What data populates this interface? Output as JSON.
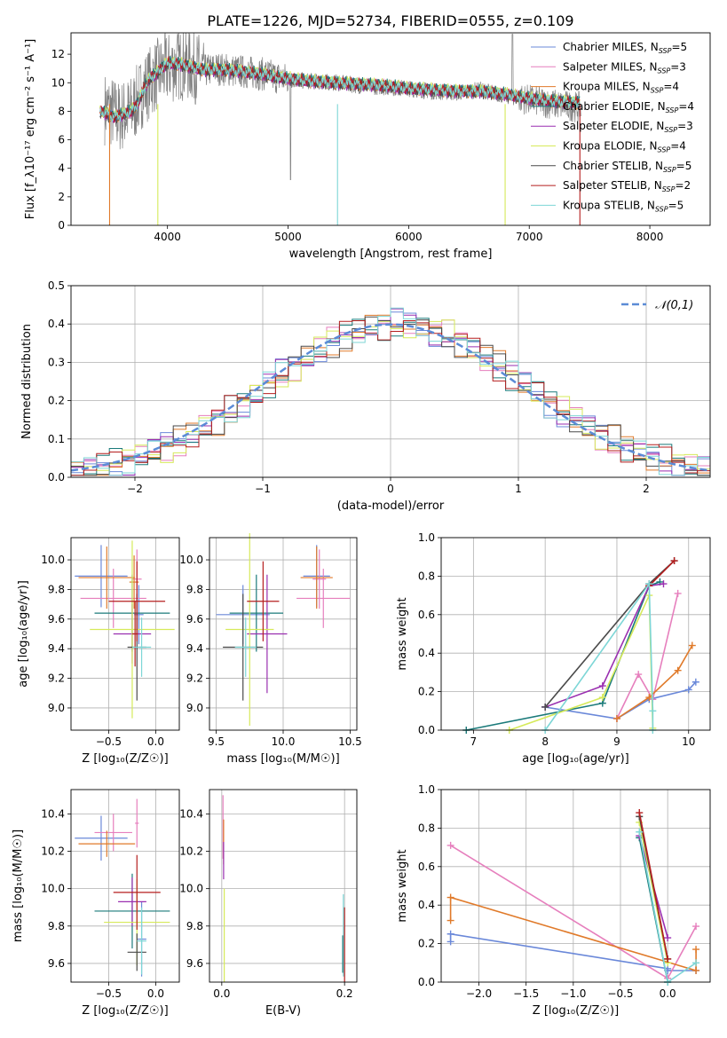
{
  "figure_title": "PLATE=1226, MJD=52734, FIBERID=0555, z=0.109",
  "colors": [
    "#6a88d9",
    "#e67fbd",
    "#e07a2a",
    "#1a7a7a",
    "#9a2fb0",
    "#d6ea5a",
    "#4a4a4a",
    "#b51e1e",
    "#7dd6d6"
  ],
  "chart_data": [
    {
      "id": "spectrum",
      "type": "line",
      "title": "PLATE=1226, MJD=52734, FIBERID=0555, z=0.109",
      "xlabel": "wavelength [Angstrom, rest frame]",
      "ylabel": "Flux [f_λ10⁻¹⁷ erg cm⁻² s⁻¹ A⁻¹]",
      "xlim": [
        3200,
        8500
      ],
      "ylim": [
        0,
        13.5
      ],
      "xticks": [
        "4000",
        "5000",
        "6000",
        "7000",
        "8000"
      ],
      "yticks": [
        "0",
        "2",
        "4",
        "6",
        "8",
        "10",
        "12"
      ],
      "legend_position": "top-right",
      "data_series": {
        "name": "data",
        "x": [
          3500,
          3600,
          3700,
          3800,
          3900,
          4000,
          4100,
          4200,
          4300,
          4400,
          4500,
          4600,
          4700,
          4800,
          4900,
          5000,
          5200,
          5400,
          5600,
          5800,
          6000,
          6200,
          6400,
          6600,
          6800,
          7000,
          7200,
          7400
        ],
        "y": [
          8.2,
          7.6,
          8.0,
          9.5,
          10.5,
          11.0,
          11.3,
          11.2,
          10.8,
          11.0,
          10.9,
          10.8,
          10.7,
          10.6,
          10.4,
          10.2,
          10.1,
          10.0,
          9.8,
          9.7,
          9.6,
          9.4,
          9.3,
          9.5,
          9.1,
          8.8,
          8.5,
          8.3
        ]
      },
      "model_x": [
        3450,
        3500,
        3550,
        3600,
        3700,
        3750,
        3800,
        3850,
        3900,
        3950,
        4000,
        4100,
        4200,
        4300,
        4400,
        4500,
        4600,
        4700,
        4800,
        4900,
        5000,
        5200,
        5400,
        5600,
        5800,
        6000,
        6200,
        6400,
        6600,
        6800,
        7000,
        7200,
        7400
      ],
      "model_y": [
        8.0,
        7.8,
        7.6,
        7.7,
        8.0,
        8.5,
        9.5,
        10.3,
        10.6,
        11.0,
        11.4,
        11.3,
        11.1,
        10.9,
        10.9,
        10.9,
        10.8,
        10.7,
        10.6,
        10.4,
        10.3,
        10.1,
        10.0,
        9.9,
        9.8,
        9.6,
        9.5,
        9.4,
        9.4,
        9.2,
        8.9,
        8.7,
        8.6
      ],
      "series": [
        {
          "name": "Chabrier MILES, N_SSP=5",
          "label_main": "Chabrier MILES, N",
          "label_sub": "SSP",
          "label_tail": "=5",
          "offset": 0.0
        },
        {
          "name": "Salpeter MILES, N_SSP=3",
          "label_main": "Salpeter MILES, N",
          "label_sub": "SSP",
          "label_tail": "=3",
          "offset": 0.05
        },
        {
          "name": "Kroupa MILES, N_SSP=4",
          "label_main": "Kroupa MILES, N",
          "label_sub": "SSP",
          "label_tail": "=4",
          "offset": -0.05
        },
        {
          "name": "Chabrier ELODIE, N_SSP=4",
          "label_main": "Chabrier ELODIE, N",
          "label_sub": "SSP",
          "label_tail": "=4",
          "offset": 0.08
        },
        {
          "name": "Salpeter ELODIE, N_SSP=3",
          "label_main": "Salpeter ELODIE, N",
          "label_sub": "SSP",
          "label_tail": "=3",
          "offset": -0.08
        },
        {
          "name": "Kroupa ELODIE, N_SSP=4",
          "label_main": "Kroupa ELODIE, N",
          "label_sub": "SSP",
          "label_tail": "=4",
          "offset": 0.1
        },
        {
          "name": "Chabrier STELIB, N_SSP=5",
          "label_main": "Chabrier STELIB, N",
          "label_sub": "SSP",
          "label_tail": "=5",
          "offset": -0.1
        },
        {
          "name": "Salpeter STELIB, N_SSP=2",
          "label_main": "Salpeter STELIB, N",
          "label_sub": "SSP",
          "label_tail": "=2",
          "offset": 0.03
        },
        {
          "name": "Kroupa STELIB, N_SSP=5",
          "label_main": "Kroupa STELIB, N",
          "label_sub": "SSP",
          "label_tail": "=5",
          "offset": 0.0
        }
      ],
      "drop_lines": [
        {
          "x": 3520,
          "series": 2
        },
        {
          "x": 3920,
          "series": 5
        },
        {
          "x": 5410,
          "series": 8
        },
        {
          "x": 6800,
          "series": 5
        },
        {
          "x": 7420,
          "series": 7
        }
      ]
    },
    {
      "id": "residuals",
      "type": "histogram",
      "xlabel": "(data-model)/error",
      "ylabel": "Normed distribution",
      "xlim": [
        -2.5,
        2.5
      ],
      "ylim": [
        0,
        0.5
      ],
      "xticks": [
        "−2",
        "−1",
        "0",
        "1",
        "2"
      ],
      "yticks": [
        "0.0",
        "0.1",
        "0.2",
        "0.3",
        "0.4",
        "0.5"
      ],
      "legend_position": "top-right",
      "reference_curve": {
        "name": "𝒩(0,1)",
        "type": "gaussian",
        "mean": 0,
        "sigma": 1
      },
      "bin_width": 0.1
    },
    {
      "id": "age-vs-Z",
      "type": "scatter",
      "xlabel": "Z [log₁₀(Z/Z☉)]",
      "ylabel": "age  [log₁₀(age/yr)]",
      "xlim": [
        -0.9,
        0.25
      ],
      "ylim": [
        8.85,
        10.15
      ],
      "xticks": [
        "−0.5",
        "0.0"
      ],
      "yticks": [
        "9.0",
        "9.2",
        "9.4",
        "9.6",
        "9.8",
        "10.0"
      ],
      "points": [
        {
          "series": 0,
          "x": -0.58,
          "y": 9.89,
          "xerr": 0.28,
          "yerr": 0.21
        },
        {
          "series": 0,
          "x": -0.18,
          "y": 9.63,
          "xerr": 0.05,
          "yerr": 0.2
        },
        {
          "series": 1,
          "x": -0.45,
          "y": 9.74,
          "xerr": 0.35,
          "yerr": 0.2
        },
        {
          "series": 1,
          "x": -0.2,
          "y": 9.87,
          "xerr": 0.05,
          "yerr": 0.2
        },
        {
          "series": 2,
          "x": -0.52,
          "y": 9.88,
          "xerr": 0.3,
          "yerr": 0.21
        },
        {
          "series": 2,
          "x": -0.23,
          "y": 9.85,
          "xerr": 0.05,
          "yerr": 0.18
        },
        {
          "series": 3,
          "x": -0.25,
          "y": 9.64,
          "xerr": 0.4,
          "yerr": 0.26
        },
        {
          "series": 4,
          "x": -0.25,
          "y": 9.5,
          "xerr": 0.2,
          "yerr": 0.2
        },
        {
          "series": 5,
          "x": -0.25,
          "y": 9.53,
          "xerr": 0.45,
          "yerr": 0.6
        },
        {
          "series": 6,
          "x": -0.2,
          "y": 9.41,
          "xerr": 0.1,
          "yerr": 0.36
        },
        {
          "series": 7,
          "x": -0.2,
          "y": 9.72,
          "xerr": 0.3,
          "yerr": 0.27
        },
        {
          "series": 7,
          "x": -0.22,
          "y": 9.5,
          "xerr": 0.03,
          "yerr": 0.22
        },
        {
          "series": 8,
          "x": -0.15,
          "y": 9.41,
          "xerr": 0.1,
          "yerr": 0.2
        }
      ]
    },
    {
      "id": "age-vs-mass",
      "type": "scatter",
      "xlabel": "mass [log₁₀(M/M☉)]",
      "ylabel": "",
      "xlim": [
        9.45,
        10.55
      ],
      "ylim": [
        8.85,
        10.15
      ],
      "xticks": [
        "9.5",
        "10.0",
        "10.5"
      ],
      "yticks": [
        "9.0",
        "9.2",
        "9.4",
        "9.6",
        "9.8",
        "10.0"
      ],
      "points": [
        {
          "series": 0,
          "x": 9.7,
          "y": 9.63,
          "xerr": 0.2,
          "yerr": 0.2
        },
        {
          "series": 0,
          "x": 10.25,
          "y": 9.89,
          "xerr": 0.1,
          "yerr": 0.21
        },
        {
          "series": 1,
          "x": 10.3,
          "y": 9.74,
          "xerr": 0.2,
          "yerr": 0.2
        },
        {
          "series": 1,
          "x": 10.27,
          "y": 9.87,
          "xerr": 0.05,
          "yerr": 0.2
        },
        {
          "series": 2,
          "x": 10.25,
          "y": 9.88,
          "xerr": 0.12,
          "yerr": 0.21
        },
        {
          "series": 3,
          "x": 9.8,
          "y": 9.64,
          "xerr": 0.2,
          "yerr": 0.26
        },
        {
          "series": 4,
          "x": 9.88,
          "y": 9.5,
          "xerr": 0.15,
          "yerr": 0.4
        },
        {
          "series": 5,
          "x": 9.75,
          "y": 9.53,
          "xerr": 0.18,
          "yerr": 0.65
        },
        {
          "series": 6,
          "x": 9.7,
          "y": 9.41,
          "xerr": 0.15,
          "yerr": 0.36
        },
        {
          "series": 7,
          "x": 9.85,
          "y": 9.72,
          "xerr": 0.12,
          "yerr": 0.27
        },
        {
          "series": 8,
          "x": 9.72,
          "y": 9.41,
          "xerr": 0.08,
          "yerr": 0.2
        }
      ]
    },
    {
      "id": "mass-weight-vs-age",
      "type": "line",
      "xlabel": "age  [log₁₀(age/yr)]",
      "ylabel": "mass weight",
      "xlim": [
        6.55,
        10.3
      ],
      "ylim": [
        0,
        1.0
      ],
      "xticks": [
        "7",
        "8",
        "9",
        "10"
      ],
      "yticks": [
        "0.0",
        "0.2",
        "0.4",
        "0.6",
        "0.8",
        "1.0"
      ],
      "series": [
        {
          "series": 0,
          "x": [
            8.0,
            9.0,
            9.45,
            10.0,
            10.1
          ],
          "y": [
            0.12,
            0.06,
            0.16,
            0.21,
            0.25
          ]
        },
        {
          "series": 1,
          "x": [
            9.0,
            9.3,
            9.5,
            9.85
          ],
          "y": [
            0.06,
            0.29,
            0.16,
            0.71
          ]
        },
        {
          "series": 2,
          "x": [
            9.0,
            9.45,
            9.85,
            10.05
          ],
          "y": [
            0.06,
            0.17,
            0.31,
            0.44
          ]
        },
        {
          "series": 3,
          "x": [
            6.9,
            8.8,
            9.45,
            9.6
          ],
          "y": [
            0.0,
            0.14,
            0.75,
            0.77
          ]
        },
        {
          "series": 4,
          "x": [
            8.0,
            8.8,
            9.45,
            9.65
          ],
          "y": [
            0.12,
            0.23,
            0.75,
            0.76
          ]
        },
        {
          "series": 5,
          "x": [
            7.5,
            8.8,
            9.45,
            9.5
          ],
          "y": [
            0.0,
            0.17,
            0.7,
            0.01
          ]
        },
        {
          "series": 6,
          "x": [
            8.0,
            9.45,
            9.8
          ],
          "y": [
            0.12,
            0.76,
            0.88
          ]
        },
        {
          "series": 7,
          "x": [
            9.45,
            9.8
          ],
          "y": [
            0.75,
            0.88
          ]
        },
        {
          "series": 8,
          "x": [
            8.0,
            9.45,
            9.5,
            9.5
          ],
          "y": [
            0.0,
            0.76,
            0.1,
            0.0
          ]
        }
      ]
    },
    {
      "id": "mass-vs-Z",
      "type": "scatter",
      "xlabel": "Z [log₁₀(Z/Z☉)]",
      "ylabel": "mass [log₁₀(M/M☉)]",
      "xlim": [
        -0.9,
        0.25
      ],
      "ylim": [
        9.5,
        10.53
      ],
      "xticks": [
        "−0.5",
        "0.0"
      ],
      "yticks": [
        "9.6",
        "9.8",
        "10.0",
        "10.2",
        "10.4"
      ],
      "points": [
        {
          "series": 0,
          "x": -0.58,
          "y": 10.27,
          "xerr": 0.28,
          "yerr": 0.12
        },
        {
          "series": 0,
          "x": -0.15,
          "y": 9.73,
          "xerr": 0.05,
          "yerr": 0.2
        },
        {
          "series": 1,
          "x": -0.45,
          "y": 10.3,
          "xerr": 0.2,
          "yerr": 0.1
        },
        {
          "series": 1,
          "x": -0.2,
          "y": 10.35,
          "xerr": 0.02,
          "yerr": 0.13
        },
        {
          "series": 2,
          "x": -0.52,
          "y": 10.24,
          "xerr": 0.3,
          "yerr": 0.07
        },
        {
          "series": 3,
          "x": -0.25,
          "y": 9.88,
          "xerr": 0.4,
          "yerr": 0.2
        },
        {
          "series": 4,
          "x": -0.25,
          "y": 9.93,
          "xerr": 0.15,
          "yerr": 0.13
        },
        {
          "series": 5,
          "x": -0.2,
          "y": 9.82,
          "xerr": 0.35,
          "yerr": 0.23
        },
        {
          "series": 6,
          "x": -0.2,
          "y": 9.66,
          "xerr": 0.1,
          "yerr": 0.1
        },
        {
          "series": 7,
          "x": -0.2,
          "y": 9.98,
          "xerr": 0.25,
          "yerr": 0.2
        },
        {
          "series": 8,
          "x": -0.15,
          "y": 9.72,
          "xerr": 0.05,
          "yerr": 0.18
        }
      ]
    },
    {
      "id": "mass-vs-EBV",
      "type": "scatter",
      "xlabel": "E(B-V)",
      "ylabel": "",
      "xlim": [
        -0.02,
        0.22
      ],
      "ylim": [
        9.5,
        10.53
      ],
      "xticks": [
        "0.0",
        "0.2"
      ],
      "yticks": [
        "9.6",
        "9.8",
        "10.0",
        "10.2",
        "10.4"
      ],
      "points": [
        {
          "series": 1,
          "x": 0.002,
          "y": 10.33,
          "xerr": 0.0,
          "yerr": 0.17
        },
        {
          "series": 2,
          "x": 0.003,
          "y": 10.25,
          "xerr": 0.0,
          "yerr": 0.12
        },
        {
          "series": 4,
          "x": 0.003,
          "y": 10.15,
          "xerr": 0.0,
          "yerr": 0.1
        },
        {
          "series": 5,
          "x": 0.004,
          "y": 9.75,
          "xerr": 0.0,
          "yerr": 0.25
        },
        {
          "series": 7,
          "x": 0.2,
          "y": 9.7,
          "xerr": 0.0,
          "yerr": 0.2
        },
        {
          "series": 8,
          "x": 0.198,
          "y": 9.75,
          "xerr": 0.0,
          "yerr": 0.22
        },
        {
          "series": 3,
          "x": 0.197,
          "y": 9.65,
          "xerr": 0.0,
          "yerr": 0.1
        }
      ]
    },
    {
      "id": "mass-weight-vs-Z",
      "type": "line",
      "xlabel": "Z [log₁₀(Z/Z☉)]",
      "ylabel": "mass weight",
      "xlim": [
        -2.4,
        0.45
      ],
      "ylim": [
        0,
        1.0
      ],
      "xticks": [
        "−2.0",
        "−1.5",
        "−1.0",
        "−0.5",
        "0.0"
      ],
      "yticks": [
        "0.0",
        "0.2",
        "0.4",
        "0.6",
        "0.8",
        "1.0"
      ],
      "series": [
        {
          "series": 0,
          "x": [
            -2.3,
            -2.3,
            0.0,
            0.0,
            0.3
          ],
          "y": [
            0.21,
            0.25,
            0.07,
            0.06,
            0.06
          ]
        },
        {
          "series": 1,
          "x": [
            -2.3,
            0.0,
            0.3
          ],
          "y": [
            0.71,
            0.02,
            0.29
          ]
        },
        {
          "series": 2,
          "x": [
            -2.3,
            -2.3,
            0.3,
            0.3
          ],
          "y": [
            0.32,
            0.44,
            0.06,
            0.17
          ]
        },
        {
          "series": 3,
          "x": [
            -0.3,
            0.0
          ],
          "y": [
            0.75,
            0.0
          ]
        },
        {
          "series": 4,
          "x": [
            -0.3,
            0.0
          ],
          "y": [
            0.76,
            0.23
          ]
        },
        {
          "series": 5,
          "x": [
            -0.3,
            0.0
          ],
          "y": [
            0.83,
            0.1
          ]
        },
        {
          "series": 6,
          "x": [
            -0.3,
            0.0
          ],
          "y": [
            0.86,
            0.12
          ]
        },
        {
          "series": 7,
          "x": [
            -0.3,
            0.0
          ],
          "y": [
            0.88,
            0.12
          ]
        },
        {
          "series": 8,
          "x": [
            -0.3,
            0.0,
            0.3
          ],
          "y": [
            0.78,
            0.0,
            0.1
          ]
        }
      ]
    }
  ]
}
